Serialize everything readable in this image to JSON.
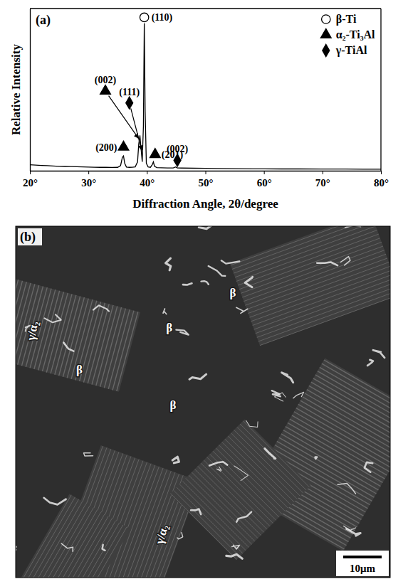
{
  "chart_data": {
    "type": "line",
    "panel": "(a)",
    "x_label": "Diffraction Angle, 2θ/degree",
    "y_label": "Relative Intensity",
    "x": [
      20,
      21,
      22,
      23,
      24,
      25,
      26,
      27,
      28,
      29,
      30,
      31,
      32,
      33,
      34,
      35,
      35.5,
      35.8,
      36.0,
      36.2,
      36.5,
      37,
      37.5,
      38,
      38.4,
      38.6,
      38.8,
      39.0,
      39.2,
      39.4,
      39.55,
      39.7,
      39.9,
      40.2,
      40.6,
      40.9,
      41.1,
      41.3,
      41.7,
      42.5,
      43.5,
      44.5,
      44.9,
      45.2,
      46,
      48,
      50,
      52,
      55,
      58,
      60,
      63,
      66,
      70,
      74,
      77,
      80
    ],
    "series": [
      {
        "color": "#000000",
        "values": [
          4,
          3.8,
          3.6,
          3.4,
          3.2,
          3.0,
          2.9,
          2.8,
          2.7,
          2.6,
          2.5,
          2.4,
          2.3,
          2.3,
          2.2,
          2.3,
          3.5,
          9,
          10,
          5,
          2.5,
          2.3,
          2.4,
          2.6,
          6,
          18,
          24,
          15,
          6,
          30,
          100,
          40,
          5,
          2.6,
          2.3,
          4,
          6,
          3,
          2.1,
          2,
          1.9,
          1.9,
          2.6,
          1.9,
          1.8,
          1.7,
          1.6,
          1.5,
          1.4,
          1.3,
          1.3,
          1.2,
          1.2,
          1.1,
          1.1,
          1.0,
          1.0
        ]
      }
    ],
    "xlim": [
      20,
      80
    ],
    "ylim": [
      0,
      110
    ],
    "xticks": [
      {
        "value": 20,
        "label": "20°"
      },
      {
        "value": 30,
        "label": "30°"
      },
      {
        "value": 40,
        "label": "40°"
      },
      {
        "value": 50,
        "label": "50°"
      },
      {
        "value": 60,
        "label": "60°"
      },
      {
        "value": 70,
        "label": "70°"
      },
      {
        "value": 80,
        "label": "80°"
      }
    ],
    "tick_labels": "x",
    "legend": "upper right",
    "phases": [
      {
        "name": "β-Ti",
        "marker": "open-circle"
      },
      {
        "name": "α₂-Ti₃Al",
        "marker": "triangle"
      },
      {
        "name": "γ-TiAl",
        "marker": "diamond"
      }
    ],
    "annotations": [
      {
        "text": "(110)",
        "phase": "β-Ti",
        "x": 39.55,
        "y": 104
      },
      {
        "text": "(002)",
        "phase": "α₂-Ti₃Al",
        "x": 32.9,
        "y": 54,
        "arrow_to": [
          38.55,
          22
        ]
      },
      {
        "text": "(111)",
        "phase": "γ-TiAl",
        "x": 37.0,
        "y": 46,
        "arrow_to": [
          39.1,
          14
        ]
      },
      {
        "text": "(200)",
        "phase": "α₂-Ti₃Al",
        "x": 36.0,
        "y": 16
      },
      {
        "text": "(201)",
        "phase": "α₂-Ti₃Al",
        "x": 41.4,
        "y": 11
      },
      {
        "text": "(002)",
        "phase": "γ-TiAl",
        "x": 45.2,
        "y": 7
      }
    ]
  },
  "micrograph": {
    "panel": "(b)",
    "labels": [
      "β",
      "β",
      "β",
      "β",
      "γ/α₂",
      "γ/α₂"
    ],
    "scale_bar": "10μm"
  }
}
